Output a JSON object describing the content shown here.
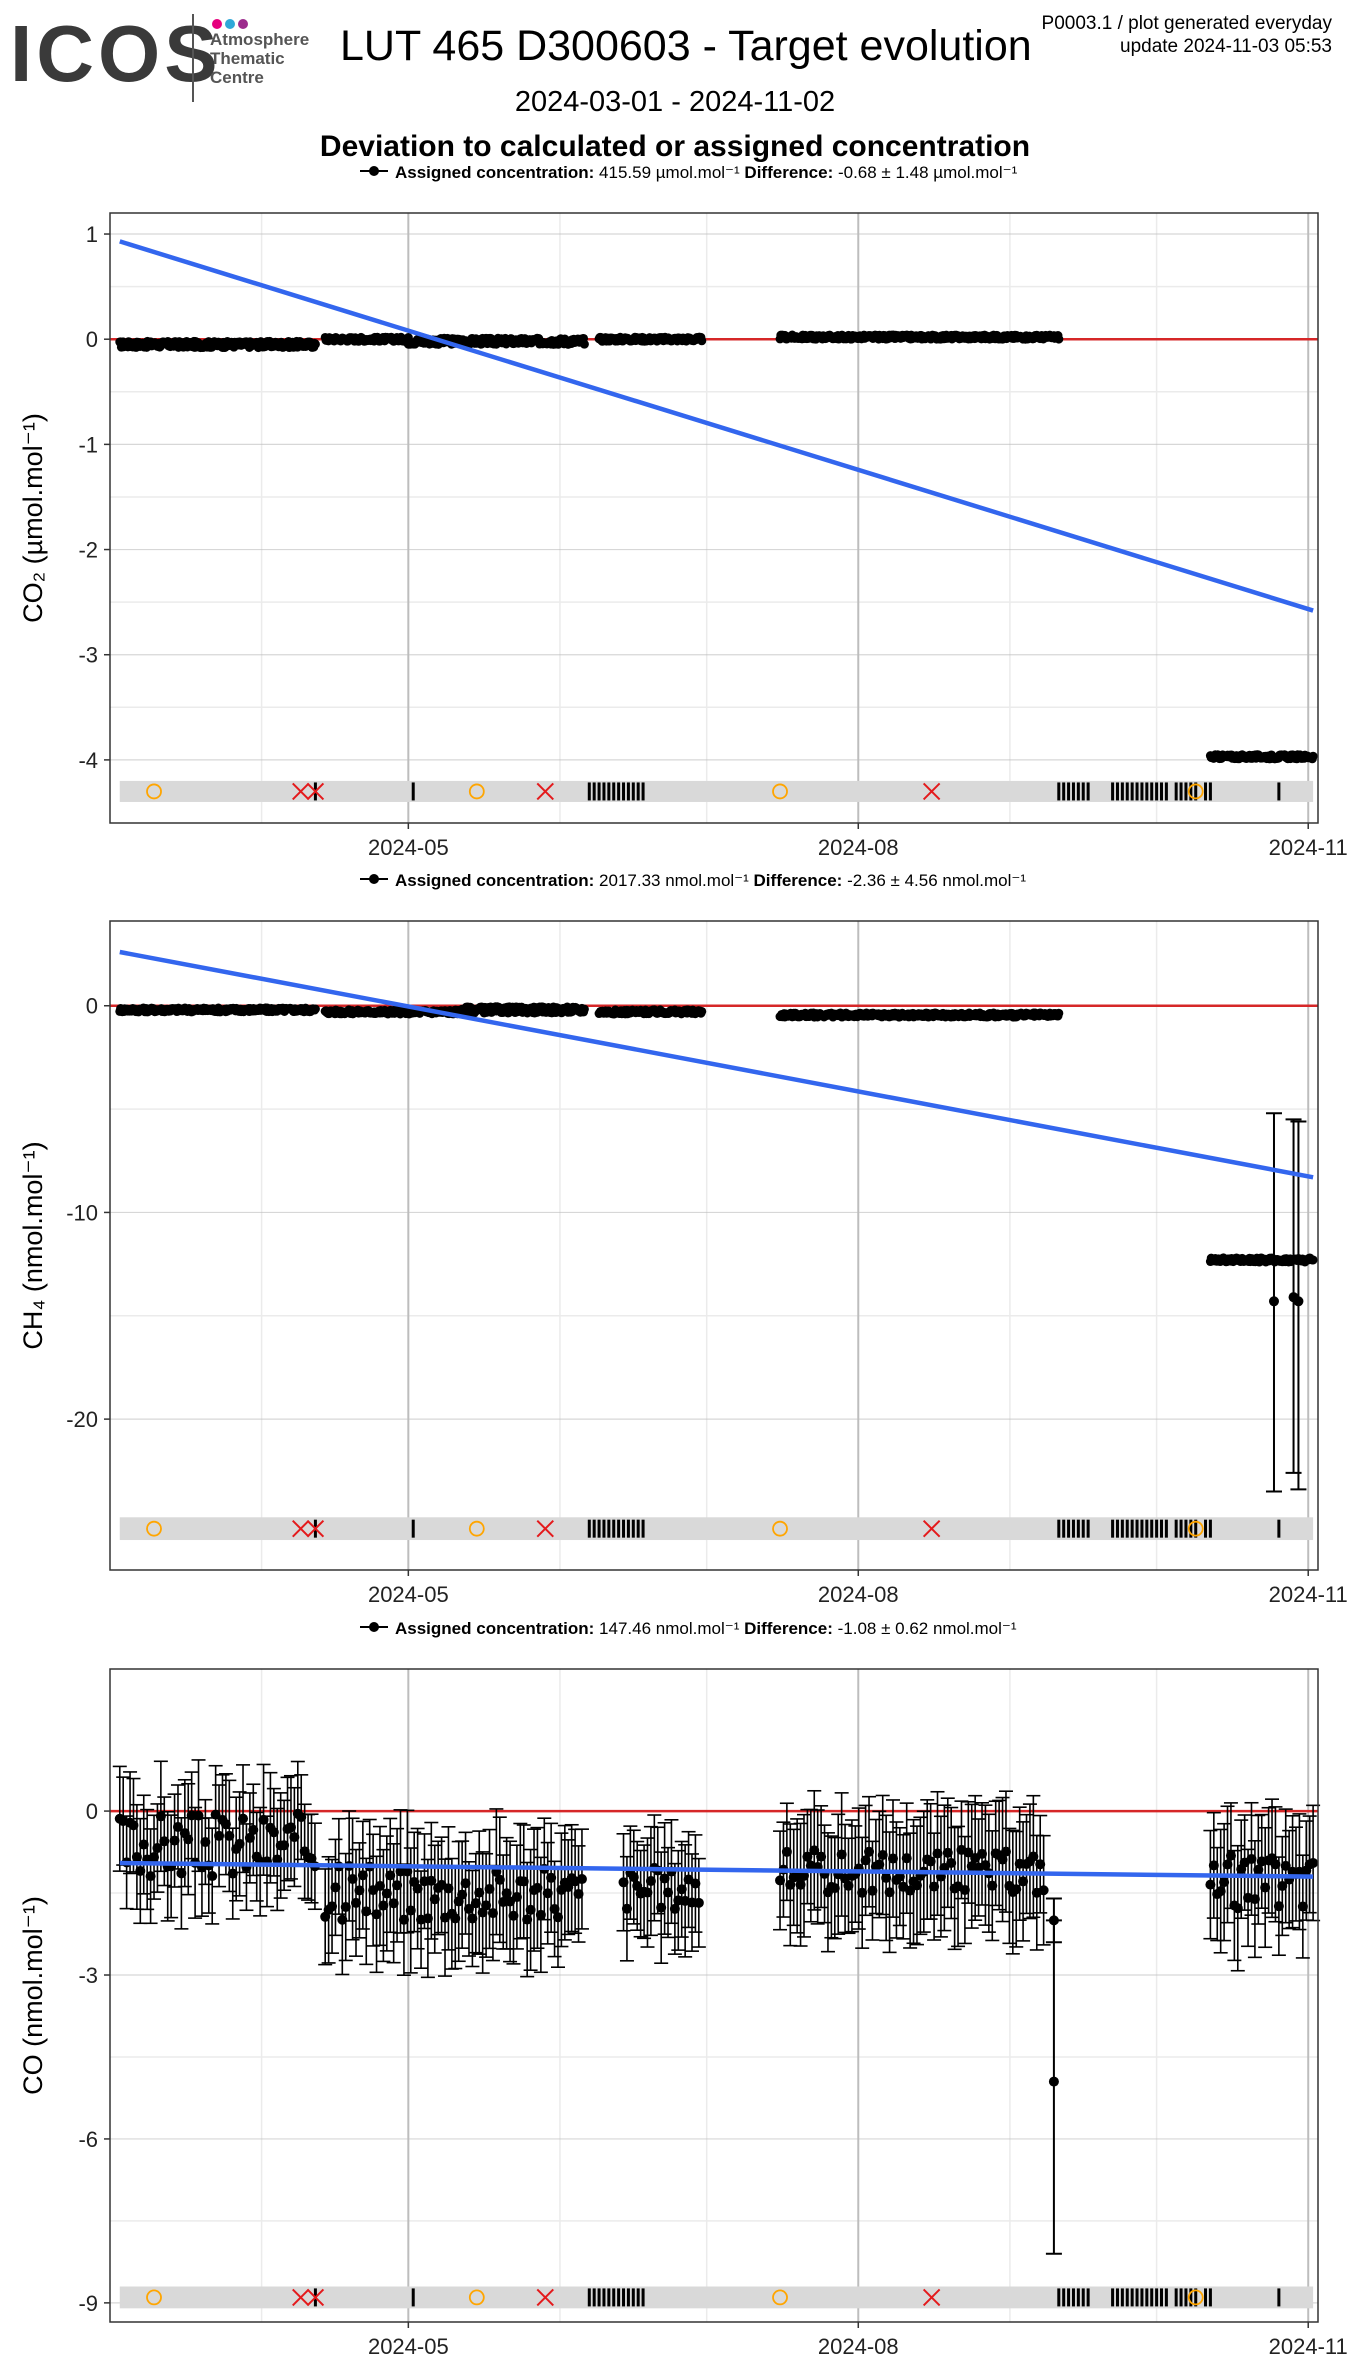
{
  "header": {
    "logo_word": "ICOS",
    "logo_lines": [
      "Atmosphere",
      "Thematic",
      "Centre"
    ],
    "logo_dot_colors": [
      "#e6007e",
      "#2fa8d8",
      "#9c2b8c"
    ],
    "title": "LUT 465 D300603 - Target evolution",
    "meta_line1": "P0003.1 / plot generated everyday",
    "meta_line2": "update  2024-11-03 05:53",
    "date_range": "2024-03-01 - 2024-11-02",
    "subtitle": "Deviation to calculated or assigned concentration"
  },
  "colors": {
    "points": "#000000",
    "zero_line": "#d62728",
    "trend_line": "#3366ee",
    "flag_band": "#d9d9d9",
    "flag_circle": "#ffa500",
    "flag_cross": "#e41a1c",
    "grid_major": "#bdbdbd",
    "grid_minor": "#ebebeb"
  },
  "x_ticks": [
    "2024-05",
    "2024-08",
    "2024-11"
  ],
  "chart_data": [
    {
      "type": "scatter",
      "legend": {
        "label": "Assigned concentration:",
        "value": "415.59 µmol.mol⁻¹",
        "diff_label": "Difference:",
        "diff_value": "-0.68 ± 1.48 µmol.mol⁻¹"
      },
      "ylabel": "CO₂ (µmol.mol⁻¹)",
      "ylim": [
        -4.6,
        1.2
      ],
      "yticks": [
        1,
        0,
        -1,
        -2,
        -3,
        -4
      ],
      "ytick_labels": [
        "1",
        "0",
        "-1",
        "-2",
        "-3",
        "-4"
      ],
      "xlim": [
        "2024-03-01",
        "2024-11-03"
      ],
      "trend": {
        "x": [
          "2024-03-03",
          "2024-11-02"
        ],
        "y": [
          0.93,
          -2.58
        ]
      },
      "segments": [
        {
          "x0": "2024-03-03",
          "x1": "2024-04-12",
          "y": -0.05,
          "amp": 0.03
        },
        {
          "x0": "2024-04-14",
          "x1": "2024-05-01",
          "y": 0.0,
          "amp": 0.02
        },
        {
          "x0": "2024-05-01",
          "x1": "2024-06-06",
          "y": -0.02,
          "amp": 0.03
        },
        {
          "x0": "2024-06-09",
          "x1": "2024-06-30",
          "y": 0.0,
          "amp": 0.02
        },
        {
          "x0": "2024-07-16",
          "x1": "2024-09-11",
          "y": 0.02,
          "amp": 0.02
        },
        {
          "x0": "2024-10-12",
          "x1": "2024-11-02",
          "y": -3.97,
          "amp": 0.02
        }
      ],
      "flag_band": {
        "y": -4.3,
        "half": 0.1
      }
    },
    {
      "type": "scatter",
      "legend": {
        "label": "Assigned concentration:",
        "value": "2017.33 nmol.mol⁻¹",
        "diff_label": "Difference:",
        "diff_value": "-2.36 ± 4.56 nmol.mol⁻¹"
      },
      "ylabel": "CH₄ (nmol.mol⁻¹)",
      "ylim": [
        -27.3,
        4.1
      ],
      "yticks": [
        0,
        -10,
        -20
      ],
      "ytick_labels": [
        "0",
        "-10",
        "-20"
      ],
      "xlim": [
        "2024-03-01",
        "2024-11-03"
      ],
      "trend": {
        "x": [
          "2024-03-03",
          "2024-11-02"
        ],
        "y": [
          2.6,
          -8.3
        ]
      },
      "segments": [
        {
          "x0": "2024-03-03",
          "x1": "2024-04-12",
          "y": -0.2,
          "amp": 0.1
        },
        {
          "x0": "2024-04-14",
          "x1": "2024-05-12",
          "y": -0.3,
          "amp": 0.1
        },
        {
          "x0": "2024-05-12",
          "x1": "2024-06-06",
          "y": -0.2,
          "amp": 0.15
        },
        {
          "x0": "2024-06-09",
          "x1": "2024-06-30",
          "y": -0.3,
          "amp": 0.1
        },
        {
          "x0": "2024-07-16",
          "x1": "2024-09-11",
          "y": -0.45,
          "amp": 0.1
        },
        {
          "x0": "2024-10-12",
          "x1": "2024-11-02",
          "y": -12.3,
          "amp": 0.1
        }
      ],
      "error_points": [
        {
          "x": "2024-10-25",
          "y": -14.3,
          "lo": -23.5,
          "hi": -5.2
        },
        {
          "x": "2024-10-29",
          "y": -14.1,
          "lo": -22.6,
          "hi": -5.5
        },
        {
          "x": "2024-10-30",
          "y": -14.3,
          "lo": -23.4,
          "hi": -5.6
        }
      ],
      "flag_band": {
        "y": -25.3,
        "half": 0.55
      }
    },
    {
      "type": "scatter",
      "legend": {
        "label": "Assigned concentration:",
        "value": "147.46 nmol.mol⁻¹",
        "diff_label": "Difference:",
        "diff_value": "-1.08 ± 0.62 nmol.mol⁻¹"
      },
      "ylabel": "CO (nmol.mol⁻¹)",
      "ylim": [
        -9.35,
        2.6
      ],
      "yticks": [
        0,
        -3,
        -6,
        -9
      ],
      "ytick_labels": [
        "0",
        "-3",
        "-6",
        "-9"
      ],
      "xlim": [
        "2024-03-01",
        "2024-11-03"
      ],
      "trend": {
        "x": [
          "2024-03-03",
          "2024-11-02"
        ],
        "y": [
          -0.95,
          -1.2
        ]
      },
      "segments_err": [
        {
          "x0": "2024-03-03",
          "x1": "2024-04-12",
          "y": -0.6,
          "amp": 0.6,
          "err": 0.9
        },
        {
          "x0": "2024-04-14",
          "x1": "2024-06-06",
          "y": -1.5,
          "amp": 0.5,
          "err": 1.0
        },
        {
          "x0": "2024-06-14",
          "x1": "2024-06-30",
          "y": -1.4,
          "amp": 0.4,
          "err": 0.9
        },
        {
          "x0": "2024-07-16",
          "x1": "2024-09-08",
          "y": -1.1,
          "amp": 0.4,
          "err": 1.0
        },
        {
          "x0": "2024-10-12",
          "x1": "2024-11-02",
          "y": -1.3,
          "amp": 0.5,
          "err": 1.0
        }
      ],
      "error_points": [
        {
          "x": "2024-09-10",
          "y": -4.95,
          "lo": -8.1,
          "hi": -2.0
        },
        {
          "x": "2024-09-10",
          "y": -2.0,
          "lo": -2.4,
          "hi": -1.6
        }
      ],
      "flag_band": {
        "y": -8.9,
        "half": 0.2
      }
    }
  ],
  "flags": {
    "circles": [
      "2024-03-10",
      "2024-05-15",
      "2024-07-16",
      "2024-10-09"
    ],
    "crosses": [
      "2024-04-09",
      "2024-04-12",
      "2024-05-29",
      "2024-08-16"
    ],
    "bars": [
      "2024-04-12",
      "2024-05-02",
      "2024-06-07",
      "2024-06-08",
      "2024-06-09",
      "2024-06-10",
      "2024-06-11",
      "2024-06-12",
      "2024-06-13",
      "2024-06-14",
      "2024-06-15",
      "2024-06-16",
      "2024-06-17",
      "2024-06-18",
      "2024-09-11",
      "2024-09-12",
      "2024-09-13",
      "2024-09-14",
      "2024-09-15",
      "2024-09-16",
      "2024-09-17",
      "2024-09-22",
      "2024-09-23",
      "2024-09-24",
      "2024-09-25",
      "2024-09-26",
      "2024-09-27",
      "2024-09-28",
      "2024-09-29",
      "2024-09-30",
      "2024-10-01",
      "2024-10-02",
      "2024-10-03",
      "2024-10-05",
      "2024-10-06",
      "2024-10-07",
      "2024-10-08",
      "2024-10-09",
      "2024-10-11",
      "2024-10-12",
      "2024-10-26"
    ]
  }
}
